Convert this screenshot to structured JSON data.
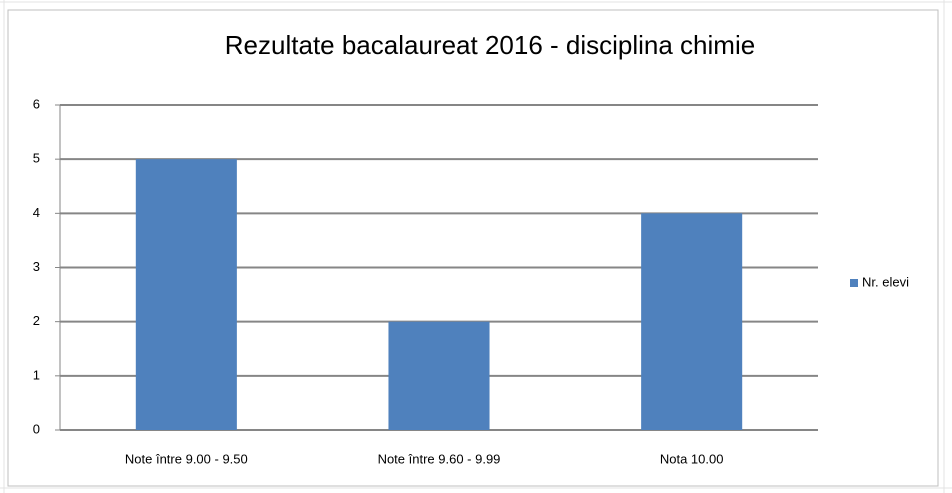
{
  "chart_data": {
    "type": "bar",
    "title": "Rezultate bacalaureat 2016 - disciplina chimie",
    "categories": [
      "Note între 9.00 - 9.50",
      "Note între 9.60 - 9.99",
      "Nota 10.00"
    ],
    "series": [
      {
        "name": "Nr. elevi",
        "color": "#4f81bd",
        "values": [
          5,
          2,
          4
        ]
      }
    ],
    "ylim": [
      0,
      6
    ],
    "yticks": [
      0,
      1,
      2,
      3,
      4,
      5,
      6
    ],
    "grid": true,
    "legend": "right"
  }
}
